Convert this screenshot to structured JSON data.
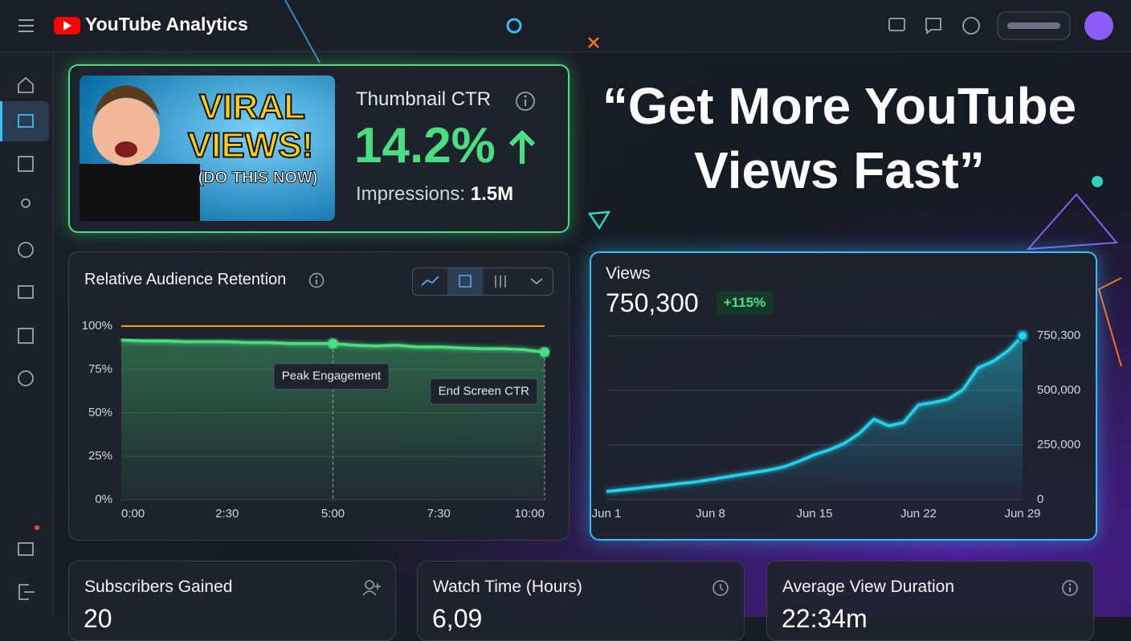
{
  "header": {
    "title": "YouTube Analytics"
  },
  "thumbnail": {
    "lines": [
      "VIRAL",
      "VIEWS!",
      "(DO THIS NOW)"
    ]
  },
  "ctr_card": {
    "label": "Thumbnail CTR",
    "value": "14.2%",
    "impressions_label": "Impressions:",
    "impressions_value": "1.5M"
  },
  "headline": {
    "lines": [
      "“Get More YouTube",
      "Views Fast”"
    ]
  },
  "chart_data": [
    {
      "type": "line",
      "title": "Relative Audience Retention",
      "x": [
        0,
        30,
        60,
        90,
        120,
        150,
        180,
        210,
        240,
        270,
        300,
        330,
        360,
        390,
        420,
        450,
        480,
        510,
        540,
        570,
        600
      ],
      "xlim": [
        0,
        600
      ],
      "xticks": [
        {
          "value": 0,
          "label": "0:00"
        },
        {
          "value": 150,
          "label": "2:30"
        },
        {
          "value": 300,
          "label": "5:00"
        },
        {
          "value": 450,
          "label": "7:30"
        },
        {
          "value": 600,
          "label": "10:00"
        }
      ],
      "ylim": [
        0,
        100
      ],
      "yticks": [
        {
          "value": 0,
          "label": "0%"
        },
        {
          "value": 25,
          "label": "25%"
        },
        {
          "value": 50,
          "label": "50%"
        },
        {
          "value": 75,
          "label": "75%"
        },
        {
          "value": 100,
          "label": "100%"
        }
      ],
      "series": [
        {
          "color": "#4ade80",
          "values": [
            92,
            91.5,
            91.5,
            91,
            91,
            91,
            90.5,
            90.5,
            90,
            90,
            90,
            89,
            88.5,
            89,
            88,
            88,
            87.5,
            87,
            87,
            86.5,
            85
          ]
        }
      ],
      "reference_line": {
        "value": 100,
        "color": "#f59e0b"
      },
      "annotations": [
        {
          "text": "Peak Engagement",
          "x": 300,
          "y": 90
        },
        {
          "text": "End Screen CTR",
          "x": 600,
          "y": 85
        }
      ],
      "grid": true
    },
    {
      "type": "line",
      "title": "Views",
      "summary": "750,300",
      "change": "+115%",
      "categories": [
        "Jun 1",
        null,
        null,
        null,
        null,
        null,
        null,
        "Jun 8",
        null,
        null,
        null,
        null,
        null,
        null,
        "Jun 15",
        null,
        null,
        null,
        null,
        null,
        null,
        "Jun 22",
        null,
        null,
        null,
        null,
        null,
        null,
        "Jun 29"
      ],
      "values": [
        37000,
        44000,
        51000,
        59000,
        66000,
        74000,
        81000,
        92000,
        103000,
        114000,
        125000,
        136000,
        151000,
        177000,
        206000,
        228000,
        257000,
        302000,
        368000,
        338000,
        353000,
        434000,
        445000,
        460000,
        504000,
        603000,
        633000,
        680000,
        750300
      ],
      "color": "#22d3ee",
      "ylim": [
        0,
        750300
      ],
      "yticks": [
        0,
        {
          "value": 250000,
          "label": "250,000"
        },
        {
          "value": 500000,
          "label": "500,000"
        },
        {
          "value": 750300,
          "label": "750,300"
        }
      ],
      "grid": true
    }
  ],
  "stat_cards": [
    {
      "title": "Subscribers Gained",
      "value": "20"
    },
    {
      "title": "Watch Time (Hours)",
      "value": "6,09"
    },
    {
      "title": "Average View Duration",
      "value": "22:34m"
    }
  ]
}
